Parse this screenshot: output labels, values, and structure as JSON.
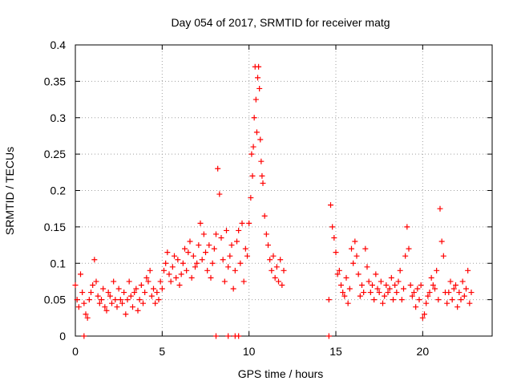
{
  "chart_data": {
    "type": "scatter",
    "title": "Day 054 of 2017, SRMTID for receiver matg",
    "xlabel": "GPS time / hours",
    "ylabel": "SRMTID / TECUs",
    "xlim": [
      0,
      24
    ],
    "ylim": [
      0,
      0.4
    ],
    "x_ticks": [
      0,
      5,
      10,
      15,
      20
    ],
    "x_tick_labels": [
      "0",
      "5",
      "10",
      "15",
      "20"
    ],
    "y_ticks": [
      0,
      0.05,
      0.1,
      0.15,
      0.2,
      0.25,
      0.3,
      0.35,
      0.4
    ],
    "y_tick_labels": [
      "0",
      "0.05",
      "0.1",
      "0.15",
      "0.2",
      "0.25",
      "0.3",
      "0.35",
      "0.4"
    ],
    "grid": true,
    "marker": "+",
    "color": "#ff0000",
    "series": [
      {
        "name": "SRMTID",
        "x": [
          0.0,
          0.1,
          0.2,
          0.3,
          0.4,
          0.5,
          0.6,
          0.7,
          0.8,
          0.9,
          1.0,
          1.1,
          1.2,
          1.3,
          1.4,
          1.5,
          1.6,
          1.7,
          1.8,
          1.9,
          2.0,
          2.1,
          2.2,
          2.3,
          2.4,
          2.5,
          2.6,
          2.7,
          2.8,
          2.9,
          3.0,
          3.1,
          3.2,
          3.3,
          3.4,
          3.5,
          3.6,
          3.7,
          3.8,
          3.9,
          4.0,
          4.1,
          4.2,
          4.3,
          4.4,
          4.5,
          4.6,
          4.7,
          4.8,
          4.9,
          5.0,
          5.1,
          5.2,
          5.3,
          5.4,
          5.5,
          5.6,
          5.7,
          5.8,
          5.9,
          6.0,
          6.1,
          6.2,
          6.3,
          6.4,
          6.5,
          6.6,
          6.7,
          6.8,
          6.9,
          7.0,
          7.1,
          7.2,
          7.3,
          7.4,
          7.5,
          7.6,
          7.7,
          7.8,
          7.9,
          8.0,
          8.1,
          8.2,
          8.3,
          8.4,
          8.5,
          8.6,
          8.7,
          8.8,
          8.9,
          9.0,
          9.1,
          9.2,
          9.3,
          9.4,
          9.5,
          9.6,
          9.7,
          9.8,
          9.9,
          10.0,
          10.1,
          10.15,
          10.2,
          10.25,
          10.3,
          10.35,
          10.4,
          10.45,
          10.5,
          10.55,
          10.6,
          10.65,
          10.7,
          10.75,
          10.8,
          10.9,
          11.0,
          11.1,
          11.2,
          11.3,
          11.4,
          11.5,
          11.6,
          11.7,
          11.8,
          11.9,
          12.0,
          14.6,
          14.7,
          14.8,
          14.9,
          15.0,
          15.1,
          15.2,
          15.3,
          15.4,
          15.5,
          15.6,
          15.7,
          15.8,
          15.9,
          16.0,
          16.1,
          16.2,
          16.3,
          16.4,
          16.5,
          16.6,
          16.7,
          16.8,
          16.9,
          17.0,
          17.1,
          17.2,
          17.3,
          17.4,
          17.5,
          17.6,
          17.7,
          17.8,
          17.9,
          18.0,
          18.1,
          18.2,
          18.3,
          18.4,
          18.5,
          18.6,
          18.7,
          18.8,
          18.9,
          19.0,
          19.1,
          19.2,
          19.3,
          19.4,
          19.5,
          19.6,
          19.7,
          19.8,
          19.9,
          20.0,
          20.1,
          20.2,
          20.3,
          20.4,
          20.5,
          20.6,
          20.7,
          20.8,
          20.9,
          21.0,
          21.1,
          21.2,
          21.3,
          21.4,
          21.5,
          21.6,
          21.7,
          21.8,
          21.9,
          22.0,
          22.1,
          22.2,
          22.3,
          22.4,
          22.5,
          22.6,
          22.7,
          22.8,
          0.5,
          8.1,
          8.8,
          9.2,
          9.4,
          14.6
        ],
        "y": [
          0.07,
          0.05,
          0.04,
          0.085,
          0.06,
          0.045,
          0.03,
          0.025,
          0.05,
          0.06,
          0.07,
          0.105,
          0.075,
          0.055,
          0.045,
          0.05,
          0.065,
          0.04,
          0.035,
          0.06,
          0.055,
          0.045,
          0.075,
          0.05,
          0.04,
          0.065,
          0.05,
          0.045,
          0.06,
          0.03,
          0.05,
          0.075,
          0.055,
          0.04,
          0.06,
          0.065,
          0.035,
          0.05,
          0.07,
          0.045,
          0.06,
          0.08,
          0.075,
          0.09,
          0.055,
          0.065,
          0.045,
          0.06,
          0.05,
          0.075,
          0.065,
          0.09,
          0.1,
          0.115,
          0.085,
          0.075,
          0.095,
          0.11,
          0.08,
          0.105,
          0.07,
          0.085,
          0.1,
          0.12,
          0.09,
          0.115,
          0.13,
          0.08,
          0.11,
          0.095,
          0.1,
          0.125,
          0.155,
          0.105,
          0.14,
          0.115,
          0.09,
          0.125,
          0.08,
          0.1,
          0.12,
          0.14,
          0.23,
          0.195,
          0.135,
          0.105,
          0.075,
          0.145,
          0.095,
          0.11,
          0.125,
          0.065,
          0.09,
          0.13,
          0.145,
          0.1,
          0.155,
          0.075,
          0.12,
          0.11,
          0.155,
          0.19,
          0.25,
          0.22,
          0.26,
          0.3,
          0.37,
          0.325,
          0.28,
          0.355,
          0.37,
          0.34,
          0.27,
          0.24,
          0.22,
          0.21,
          0.165,
          0.14,
          0.125,
          0.105,
          0.09,
          0.11,
          0.08,
          0.095,
          0.075,
          0.105,
          0.07,
          0.09,
          0.05,
          0.18,
          0.15,
          0.135,
          0.115,
          0.085,
          0.09,
          0.07,
          0.06,
          0.055,
          0.08,
          0.045,
          0.065,
          0.12,
          0.1,
          0.13,
          0.11,
          0.085,
          0.055,
          0.07,
          0.06,
          0.12,
          0.095,
          0.075,
          0.06,
          0.07,
          0.05,
          0.085,
          0.065,
          0.06,
          0.075,
          0.045,
          0.055,
          0.07,
          0.06,
          0.065,
          0.08,
          0.05,
          0.07,
          0.06,
          0.075,
          0.09,
          0.05,
          0.065,
          0.11,
          0.15,
          0.12,
          0.07,
          0.055,
          0.06,
          0.04,
          0.065,
          0.05,
          0.07,
          0.025,
          0.03,
          0.045,
          0.055,
          0.06,
          0.08,
          0.07,
          0.065,
          0.09,
          0.05,
          0.175,
          0.13,
          0.11,
          0.06,
          0.045,
          0.06,
          0.075,
          0.05,
          0.065,
          0.07,
          0.04,
          0.06,
          0.05,
          0.075,
          0.055,
          0.065,
          0.09,
          0.045,
          0.06,
          0.0,
          0.0,
          0.0,
          0.0,
          0.0,
          0.0
        ]
      }
    ]
  }
}
